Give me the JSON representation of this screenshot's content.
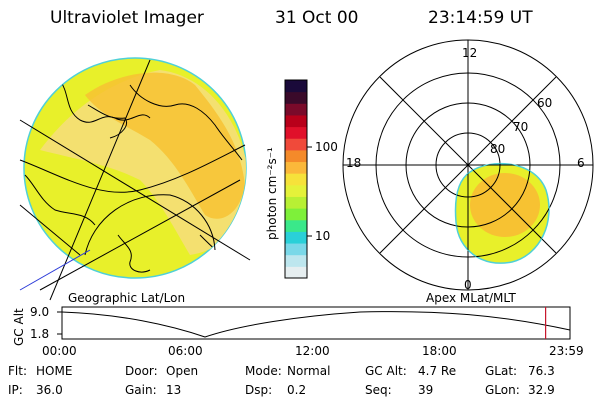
{
  "header": {
    "title": "Ultraviolet Imager",
    "date": "31 Oct 00",
    "time": "23:14:59 UT"
  },
  "colorbar": {
    "unit_label": "photon cm⁻²s⁻¹",
    "ticks": [
      "100",
      "10"
    ],
    "colors": [
      "#1a0a3a",
      "#3a0a2a",
      "#7a0a2a",
      "#b8001a",
      "#e0102a",
      "#f04a3a",
      "#f48a2a",
      "#fbb83a",
      "#f6e23a",
      "#e4f23a",
      "#b8f034",
      "#7ef03a",
      "#3ae88a",
      "#2ad0d8",
      "#7ad8e8",
      "#bde6ee",
      "#e6eef0"
    ]
  },
  "panels": {
    "left_caption": "Geographic Lat/Lon",
    "right_caption": "Apex MLat/MLT",
    "polar_labels": {
      "mlt_top": "12",
      "mlt_left": "18",
      "mlt_right": "6",
      "mlt_bottom": "0",
      "lat_60": "60",
      "lat_70": "70",
      "lat_80": "80"
    },
    "colors": {
      "fill_yellow": "#e8f02a",
      "fill_orange": "#f7c232",
      "fill_light": "#f4e070",
      "edge": "#4fd0d8",
      "map_line": "#000000",
      "accent_red": "#c8142a"
    }
  },
  "altitude": {
    "ylabel": "GC Alt",
    "yticks": [
      "9.0",
      "1.8"
    ],
    "xticks": [
      "00:00",
      "06:00",
      "12:00",
      "18:00",
      "23:59"
    ],
    "marker_fraction": 0.952
  },
  "footer": {
    "row1": [
      {
        "label": "Flt:",
        "value": "HOME"
      },
      {
        "label": "Door:",
        "value": "Open"
      },
      {
        "label": "Mode:",
        "value": "Normal"
      },
      {
        "label": "GC Alt:",
        "value": "4.7 Re"
      },
      {
        "label": "GLat:",
        "value": "76.3"
      }
    ],
    "row2": [
      {
        "label": "IP:",
        "value": "36.0"
      },
      {
        "label": "Gain:",
        "value": "13"
      },
      {
        "label": "Dsp:",
        "value": "0.2"
      },
      {
        "label": "Seq:",
        "value": "39"
      },
      {
        "label": "GLon:",
        "value": "32.9"
      }
    ]
  }
}
